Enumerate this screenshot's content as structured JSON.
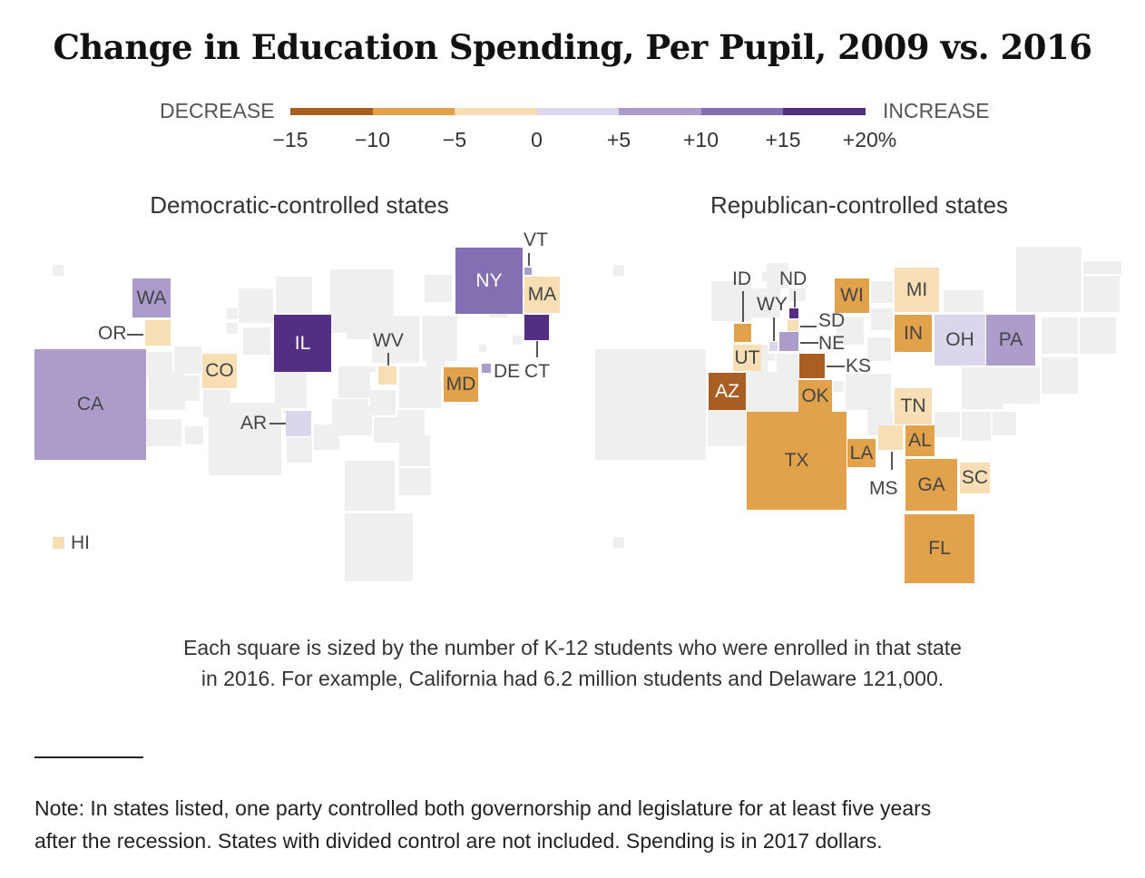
{
  "chart_data": {
    "type": "treemap",
    "title": "Change in Education Spending, Per Pupil, 2009 vs. 2016",
    "legend": {
      "left_label": "DECREASE",
      "right_label": "INCREASE",
      "ticks": [
        "−15",
        "−10",
        "−5",
        "0",
        "+5",
        "+10",
        "+15",
        "+20%"
      ],
      "bins": [
        {
          "from": -15,
          "to": -10,
          "color": "#a95f24"
        },
        {
          "from": -10,
          "to": -5,
          "color": "#e2a24b"
        },
        {
          "from": -5,
          "to": 0,
          "color": "#f7deb5"
        },
        {
          "from": 0,
          "to": 5,
          "color": "#dcd6ec"
        },
        {
          "from": 5,
          "to": 10,
          "color": "#ac9ccc"
        },
        {
          "from": 10,
          "to": 15,
          "color": "#8370b2"
        },
        {
          "from": 15,
          "to": 20,
          "color": "#532e83"
        }
      ]
    },
    "panels": [
      {
        "title": "Democratic-controlled states",
        "states": [
          {
            "code": "WA",
            "change_bin": "+5 to +10",
            "color": "#ac9ccc"
          },
          {
            "code": "OR",
            "change_bin": "−5 to 0",
            "color": "#f7deb5"
          },
          {
            "code": "CA",
            "change_bin": "+5 to +10",
            "color": "#ac9ccc"
          },
          {
            "code": "CO",
            "change_bin": "−5 to 0",
            "color": "#f7deb5"
          },
          {
            "code": "IL",
            "change_bin": "+15 to +20",
            "color": "#532e83"
          },
          {
            "code": "AR",
            "change_bin": "0 to +5",
            "color": "#dcd6ec"
          },
          {
            "code": "WV",
            "change_bin": "−5 to 0",
            "color": "#f7deb5"
          },
          {
            "code": "NY",
            "change_bin": "+10 to +15",
            "color": "#8370b2"
          },
          {
            "code": "VT",
            "change_bin": "+5 to +10",
            "color": "#ac9ccc"
          },
          {
            "code": "MA",
            "change_bin": "−5 to 0",
            "color": "#f7deb5"
          },
          {
            "code": "CT",
            "change_bin": "+15 to +20",
            "color": "#532e83"
          },
          {
            "code": "MD",
            "change_bin": "−10 to −5",
            "color": "#e2a24b"
          },
          {
            "code": "DE",
            "change_bin": "+5 to +10",
            "color": "#ac9ccc"
          },
          {
            "code": "HI",
            "change_bin": "−5 to 0",
            "color": "#f7deb5"
          }
        ]
      },
      {
        "title": "Republican-controlled states",
        "states": [
          {
            "code": "ID",
            "change_bin": "−10 to −5",
            "color": "#e2a24b"
          },
          {
            "code": "ND",
            "change_bin": "+15 to +20",
            "color": "#532e83"
          },
          {
            "code": "WY",
            "change_bin": "0 to +5",
            "color": "#dcd6ec"
          },
          {
            "code": "SD",
            "change_bin": "−5 to 0",
            "color": "#f7deb5"
          },
          {
            "code": "NE",
            "change_bin": "+5 to +10",
            "color": "#ac9ccc"
          },
          {
            "code": "KS",
            "change_bin": "−15 to −10",
            "color": "#a95f24"
          },
          {
            "code": "UT",
            "change_bin": "−5 to 0",
            "color": "#f7deb5"
          },
          {
            "code": "AZ",
            "change_bin": "−15 to −10",
            "color": "#a95f24"
          },
          {
            "code": "OK",
            "change_bin": "−10 to −5",
            "color": "#e2a24b"
          },
          {
            "code": "TX",
            "change_bin": "−10 to −5",
            "color": "#e2a24b"
          },
          {
            "code": "WI",
            "change_bin": "−10 to −5",
            "color": "#e2a24b"
          },
          {
            "code": "MI",
            "change_bin": "−5 to 0",
            "color": "#f7deb5"
          },
          {
            "code": "IN",
            "change_bin": "−10 to −5",
            "color": "#e2a24b"
          },
          {
            "code": "OH",
            "change_bin": "0 to +5",
            "color": "#dcd6ec"
          },
          {
            "code": "PA",
            "change_bin": "+5 to +10",
            "color": "#ac9ccc"
          },
          {
            "code": "TN",
            "change_bin": "−5 to 0",
            "color": "#f7deb5"
          },
          {
            "code": "LA",
            "change_bin": "−10 to −5",
            "color": "#e2a24b"
          },
          {
            "code": "MS",
            "change_bin": "−5 to 0",
            "color": "#f7deb5"
          },
          {
            "code": "AL",
            "change_bin": "−10 to −5",
            "color": "#e2a24b"
          },
          {
            "code": "GA",
            "change_bin": "−10 to −5",
            "color": "#e2a24b"
          },
          {
            "code": "SC",
            "change_bin": "−5 to 0",
            "color": "#f7deb5"
          },
          {
            "code": "FL",
            "change_bin": "−10 to −5",
            "color": "#e2a24b"
          }
        ]
      }
    ],
    "colors": {
      "background_square": "#efefef"
    }
  },
  "caption": {
    "line1": "Each square is sized by the number of K-12 students who were enrolled in that state",
    "line2": "in 2016. For example, California had 6.2 million students and Delaware 121,000."
  },
  "note": {
    "line1": "Note: In states listed, one party controlled both governorship and legislature for at least five years",
    "line2": "after the recession. States with divided control are not included. Spending is in 2017 dollars."
  }
}
